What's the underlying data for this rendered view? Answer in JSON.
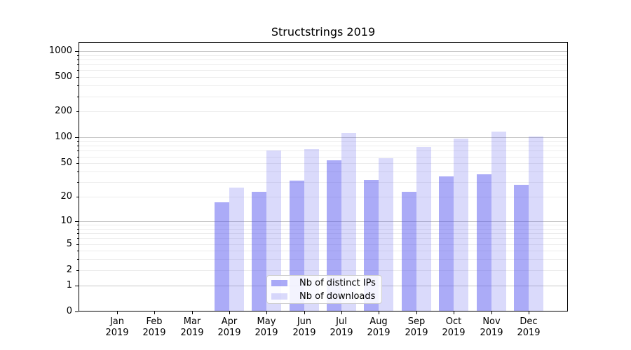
{
  "title": "Structstrings 2019",
  "chart_data": {
    "type": "bar",
    "title": "Structstrings 2019",
    "categories": [
      "Jan",
      "Feb",
      "Mar",
      "Apr",
      "May",
      "Jun",
      "Jul",
      "Aug",
      "Sep",
      "Oct",
      "Nov",
      "Dec"
    ],
    "category_year": "2019",
    "series": [
      {
        "name": "Nb of distinct IPs",
        "color": "rgba(80,80,238,0.48)",
        "values": [
          0,
          0,
          0,
          17,
          23,
          31,
          54,
          32,
          23,
          35,
          37,
          28
        ]
      },
      {
        "name": "Nb of downloads",
        "color": "rgba(80,80,238,0.21)",
        "values": [
          0,
          0,
          0,
          26,
          70,
          73,
          113,
          57,
          77,
          97,
          118,
          103
        ]
      }
    ],
    "yscale": "log10(1+value)",
    "ylim": [
      0,
      1280
    ],
    "yticks_labeled": [
      0,
      1,
      2,
      5,
      10,
      20,
      50,
      100,
      200,
      500,
      1000
    ],
    "yticks_major": [
      1,
      10,
      100,
      1000
    ],
    "yticks_minor_unlabeled": [
      3,
      4,
      6,
      7,
      8,
      9,
      30,
      40,
      60,
      70,
      80,
      90,
      300,
      400,
      600,
      700,
      800,
      900
    ],
    "xlabel": "",
    "ylabel": "",
    "grid": true,
    "legend_position": "lower center",
    "colors": {
      "bar_dark": "rgba(80,80,238,0.48)",
      "bar_light": "rgba(80,80,238,0.21)",
      "grid_major": "#c7c7c7",
      "grid_minor": "#ececec",
      "spine": "#000000",
      "text": "#000000",
      "legend_bg": "rgba(255,255,255,0.85)",
      "legend_border": "#cfcfcf"
    }
  }
}
